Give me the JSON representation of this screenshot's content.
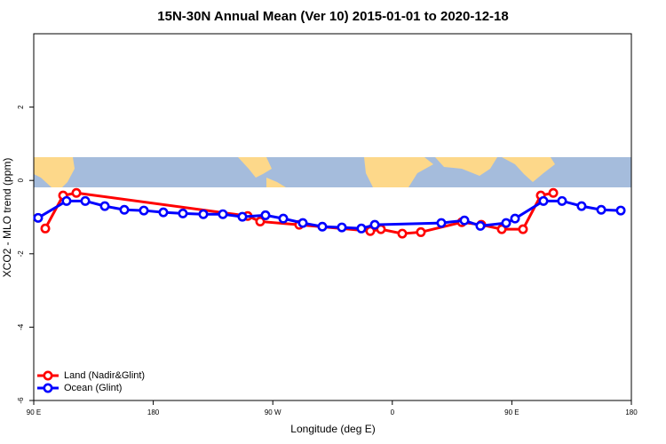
{
  "chart_data": {
    "type": "line",
    "title": "15N-30N Annual Mean (Ver 10)   2015-01-01 to 2020-12-18",
    "x_label": "Longitude (deg E)",
    "y_label": "XCO2 - MLO trend (ppm)",
    "xlim": [
      90,
      540
    ],
    "xticks": [
      {
        "value": 90,
        "label": "90 E"
      },
      180,
      {
        "value": 270,
        "label": "90 W"
      },
      {
        "value": 360,
        "label": "0"
      },
      {
        "value": 450,
        "label": "90 E"
      },
      {
        "value": 540,
        "label": "180"
      }
    ],
    "ylim": [
      -6,
      4
    ],
    "yticks": [
      -6,
      -4,
      -2,
      0,
      2
    ],
    "legend": "bottom-left",
    "series": [
      {
        "name": "Land (Nadir&Glint)",
        "color": "#ff0000",
        "x": [
          98.7,
          112.1,
          122.1,
          251.1,
          260.5,
          289.9,
          343.4,
          351.4,
          367.5,
          381.5,
          412.3,
          427.0,
          442.4,
          458.4,
          471.8,
          481.2
        ],
        "values": [
          -1.31,
          -0.41,
          -0.34,
          -0.97,
          -1.12,
          -1.21,
          -1.38,
          -1.33,
          -1.45,
          -1.41,
          -1.14,
          -1.21,
          -1.33,
          -1.33,
          -0.41,
          -0.34
        ]
      },
      {
        "name": "Ocean (Glint)",
        "color": "#0000ff",
        "x": [
          93.3,
          114.7,
          128.8,
          143.5,
          158.2,
          172.9,
          187.6,
          202.3,
          217.7,
          232.4,
          247.1,
          264.5,
          277.9,
          292.6,
          307.3,
          322.0,
          336.7,
          346.8,
          396.9,
          414.3,
          426.3,
          445.7,
          452.4,
          473.8,
          487.8,
          502.5,
          517.3,
          532.0
        ],
        "values": [
          -1.02,
          -0.56,
          -0.56,
          -0.7,
          -0.8,
          -0.82,
          -0.87,
          -0.9,
          -0.92,
          -0.92,
          -0.99,
          -0.95,
          -1.04,
          -1.16,
          -1.26,
          -1.28,
          -1.31,
          -1.21,
          -1.16,
          -1.09,
          -1.24,
          -1.16,
          -1.04,
          -0.56,
          -0.56,
          -0.7,
          -0.8,
          -0.82
        ]
      }
    ]
  }
}
